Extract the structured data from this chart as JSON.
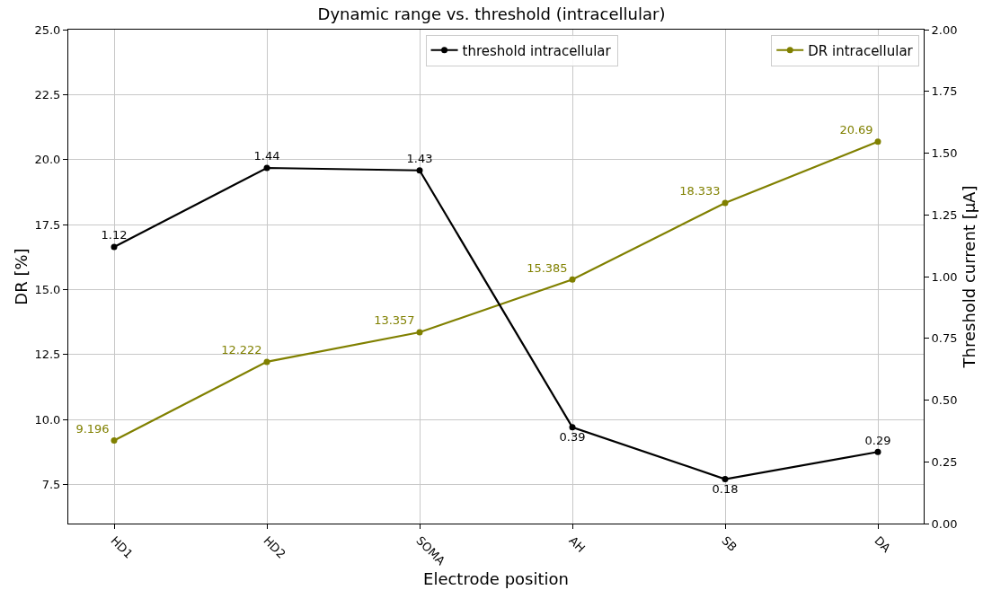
{
  "chart_data": {
    "type": "line",
    "title": "Dynamic range vs. threshold (intracellular)",
    "xlabel": "Electrode position",
    "ylabel": "DR [%]",
    "y2label": "Threshold current [µA]",
    "categories": [
      "HD1",
      "HD2",
      "SOMA",
      "AH",
      "SB",
      "DA"
    ],
    "ylim": [
      6,
      25
    ],
    "yticks": [
      7.5,
      {
        "value": 10,
        "label": "10.0"
      },
      12.5,
      {
        "value": 15,
        "label": "15.0"
      },
      17.5,
      {
        "value": 20,
        "label": "20.0"
      },
      22.5,
      {
        "value": 25,
        "label": "25.0"
      }
    ],
    "y2lim": [
      0,
      2
    ],
    "y2ticks": [
      {
        "value": 0,
        "label": "0.00"
      },
      0.25,
      {
        "value": 0.5,
        "label": "0.50"
      },
      0.75,
      {
        "value": 1,
        "label": "1.00"
      },
      1.25,
      {
        "value": 1.5,
        "label": "1.50"
      },
      1.75,
      {
        "value": 2,
        "label": "2.00"
      }
    ],
    "series": [
      {
        "name": "threshold intracellular",
        "color": "#000000",
        "axis": "y2",
        "values": [
          1.12,
          1.44,
          1.43,
          0.39,
          0.18,
          0.29
        ]
      },
      {
        "name": "DR intracellular",
        "color": "#808000",
        "values": [
          9.196,
          12.222,
          13.357,
          15.385,
          18.333,
          20.69
        ]
      }
    ],
    "data_labels": true,
    "grid": true,
    "legend": "top right",
    "marker": "circle",
    "line_style": "solid"
  }
}
